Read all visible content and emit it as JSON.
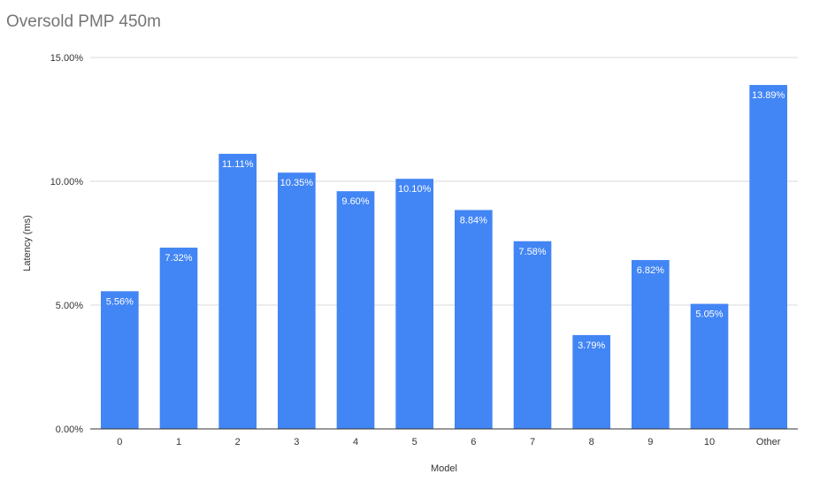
{
  "chart_data": {
    "type": "bar",
    "title": "Oversold PMP 450m",
    "xlabel": "Model",
    "ylabel": "Latency (ms)",
    "categories": [
      "0",
      "1",
      "2",
      "3",
      "4",
      "5",
      "6",
      "7",
      "8",
      "9",
      "10",
      "Other"
    ],
    "values": [
      5.56,
      7.32,
      11.11,
      10.35,
      9.6,
      10.1,
      8.84,
      7.58,
      3.79,
      6.82,
      5.05,
      13.89
    ],
    "value_labels": [
      "5.56%",
      "7.32%",
      "11.11%",
      "10.35%",
      "9.60%",
      "10.10%",
      "8.84%",
      "7.58%",
      "3.79%",
      "6.82%",
      "5.05%",
      "13.89%"
    ],
    "yticks": [
      0,
      5,
      10,
      15
    ],
    "ytick_labels": [
      "0.00%",
      "5.00%",
      "10.00%",
      "15.00%"
    ],
    "ylim": [
      0,
      15
    ],
    "grid": true,
    "legend": "none",
    "colors": {
      "bar": "#4285f4",
      "grid": "#d9d9d9",
      "axis": "#333333",
      "title": "#757575",
      "label_text": "#ffffff"
    }
  }
}
